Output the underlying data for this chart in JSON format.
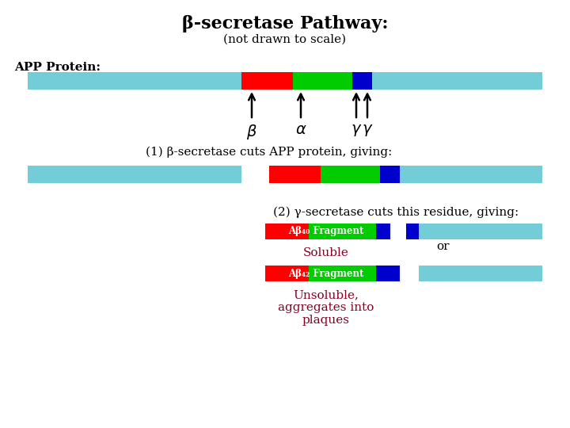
{
  "title": "β-secretase Pathway:",
  "subtitle": "(not drawn to scale)",
  "app_protein_label": "APP Protein:",
  "step1_label": "(1) β-secretase cuts APP protein, giving:",
  "step2_label": "(2) γ-secretase cuts this residue, giving:",
  "ab40_label": "Aβ₄₀ Fragment",
  "ab42_label": "Aβ₄₂ Fragment",
  "soluble_label": "Soluble",
  "insoluble_label": "Unsoluble,\naggregates into\nplaques",
  "or_label": "or",
  "cyan_color": "#72CDD8",
  "red_color": "#FF0000",
  "green_color": "#00CC00",
  "blue_color": "#0000CC",
  "dark_red_text": "#880022",
  "bg_color": "#FFFFFF"
}
